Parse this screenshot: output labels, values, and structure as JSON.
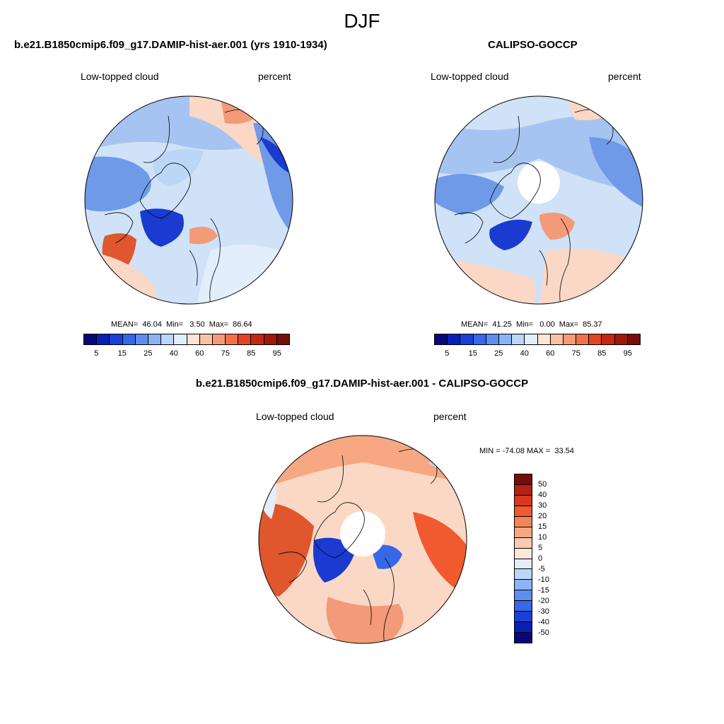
{
  "title": "DJF",
  "panels": [
    {
      "title": "b.e21.B1850cmip6.f09_g17.DAMIP-hist-aer.001 (yrs 1910-1934)",
      "left_label": "Low-topped cloud",
      "right_label": "percent",
      "stats": "MEAN=  46.04  Min=   3.50  Max=  86.64"
    },
    {
      "title": "CALIPSO-GOCCP",
      "left_label": "Low-topped cloud",
      "right_label": "percent",
      "stats": "MEAN=  41.25  Min=   0.00  Max=  85.37"
    },
    {
      "title": "b.e21.B1850cmip6.f09_g17.DAMIP-hist-aer.001 - CALIPSO-GOCCP",
      "left_label": "Low-topped cloud",
      "right_label": "percent",
      "stats": "MIN = -74.08 MAX =  33.54"
    }
  ],
  "colorbar_abs": {
    "labels": [
      "5",
      "15",
      "25",
      "40",
      "60",
      "75",
      "85",
      "95"
    ],
    "colors": [
      "#08087a",
      "#0a1fb8",
      "#1a40d8",
      "#3668e8",
      "#5e8ff0",
      "#8cb3f5",
      "#bcd6f8",
      "#e3eefb",
      "#fde5d8",
      "#f9c2a4",
      "#f59b78",
      "#f0704c",
      "#e04525",
      "#c42812",
      "#9f180b",
      "#760d08"
    ]
  },
  "colorbar_diff": {
    "labels": [
      "50",
      "40",
      "30",
      "20",
      "15",
      "10",
      "5",
      "0",
      "-5",
      "-10",
      "-15",
      "-20",
      "-30",
      "-40",
      "-50"
    ],
    "colors": [
      "#760d08",
      "#b52212",
      "#d8381c",
      "#f05a2e",
      "#f5845a",
      "#f7a882",
      "#facbb0",
      "#fde9dc",
      "#e3eefb",
      "#bcd6f8",
      "#8cb3f5",
      "#5e8ff0",
      "#3668e8",
      "#1a40d8",
      "#0a1fb8",
      "#08087a"
    ]
  },
  "colors": {
    "ocean_blue": "#cfe2f7",
    "light_blue": "#a6c4f1",
    "mid_blue": "#6f9ae8",
    "dark_blue": "#1a3ad0",
    "light_red": "#fbd8c6",
    "mid_red": "#f39a78",
    "dark_red": "#e0562d"
  }
}
